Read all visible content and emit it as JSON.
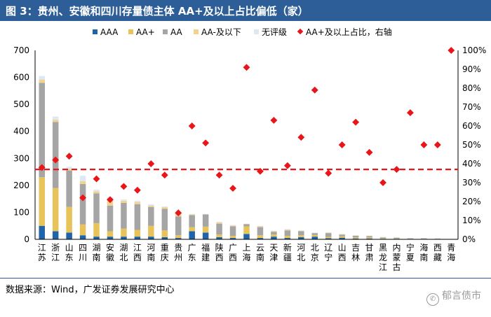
{
  "figure": {
    "title": "图 3：贵州、安徽和四川存量债主体 AA+及以上占比偏低（家）",
    "source": "数据来源：Wind，广发证券发展研究中心",
    "watermark": "郁言债市"
  },
  "colors": {
    "header_bg": "#2E5E98",
    "AAA": "#1F64A8",
    "AA+": "#E8C35A",
    "AA": "#A5A5A5",
    "AA-及以下": "#F2D28C",
    "无评级": "#DDE8F6",
    "ratio": "#E8161A",
    "average_line": "#E8161A"
  },
  "chart_data": {
    "type": "bar",
    "stacked": true,
    "categories": [
      "江苏",
      "浙江",
      "山东",
      "四川",
      "湖南",
      "安徽",
      "湖北",
      "江西",
      "河南",
      "重庆",
      "贵州",
      "广东",
      "福建",
      "陕西",
      "广西",
      "上海",
      "云南",
      "天津",
      "新疆",
      "河北",
      "北京",
      "辽宁",
      "山西",
      "吉林",
      "甘肃",
      "黑龙江",
      "内蒙古",
      "宁夏",
      "海南",
      "西藏",
      "青海"
    ],
    "series": [
      {
        "name": "AAA",
        "values": [
          50,
          30,
          25,
          15,
          10,
          10,
          10,
          10,
          10,
          8,
          5,
          30,
          25,
          8,
          5,
          20,
          5,
          10,
          5,
          8,
          10,
          4,
          6,
          3,
          3,
          2,
          2,
          1,
          1,
          1,
          1
        ]
      },
      {
        "name": "AA+",
        "values": [
          180,
          160,
          95,
          40,
          50,
          20,
          30,
          25,
          40,
          25,
          10,
          15,
          22,
          10,
          8,
          28,
          10,
          8,
          8,
          7,
          6,
          5,
          5,
          4,
          4,
          2,
          1,
          1,
          1,
          1,
          0
        ]
      },
      {
        "name": "AA",
        "values": [
          350,
          245,
          135,
          150,
          110,
          95,
          95,
          95,
          70,
          80,
          70,
          45,
          45,
          40,
          35,
          8,
          30,
          10,
          20,
          15,
          7,
          14,
          6,
          6,
          5,
          3,
          3,
          2,
          2,
          1,
          0
        ]
      },
      {
        "name": "AA-及以下",
        "values": [
          12,
          8,
          6,
          10,
          8,
          20,
          8,
          8,
          5,
          6,
          10,
          2,
          1,
          4,
          3,
          1,
          3,
          2,
          3,
          2,
          1,
          2,
          2,
          1,
          1,
          1,
          1,
          0,
          0,
          0,
          0
        ]
      },
      {
        "name": "无评级",
        "values": [
          13,
          12,
          8,
          20,
          6,
          10,
          5,
          5,
          5,
          3,
          3,
          2,
          1,
          3,
          2,
          1,
          2,
          2,
          2,
          1,
          1,
          1,
          1,
          1,
          1,
          1,
          1,
          0,
          0,
          0,
          0
        ]
      }
    ],
    "ratio_series": {
      "name": "AA+及以上占比，右轴",
      "values": [
        0.38,
        0.42,
        0.44,
        0.22,
        0.32,
        0.21,
        0.28,
        0.26,
        0.4,
        0.34,
        0.14,
        0.6,
        0.51,
        0.34,
        0.27,
        0.91,
        0.36,
        0.63,
        0.39,
        0.54,
        0.79,
        0.35,
        0.5,
        0.62,
        0.46,
        0.3,
        0.37,
        0.67,
        0.5,
        0.5,
        1.0
      ]
    },
    "average_line_value": 0.37,
    "y_left": {
      "min": 0,
      "max": 700,
      "ticks": [
        0,
        100,
        200,
        300,
        400,
        500,
        600,
        700
      ]
    },
    "y_right": {
      "min": 0,
      "max": 1,
      "ticks": [
        "0%",
        "10%",
        "20%",
        "30%",
        "40%",
        "50%",
        "60%",
        "70%",
        "80%",
        "90%",
        "100%"
      ]
    },
    "legend": [
      "AAA",
      "AA+",
      "AA",
      "AA-及以下",
      "无评级",
      "AA+及以上占比，右轴"
    ],
    "legend_position": "top"
  }
}
